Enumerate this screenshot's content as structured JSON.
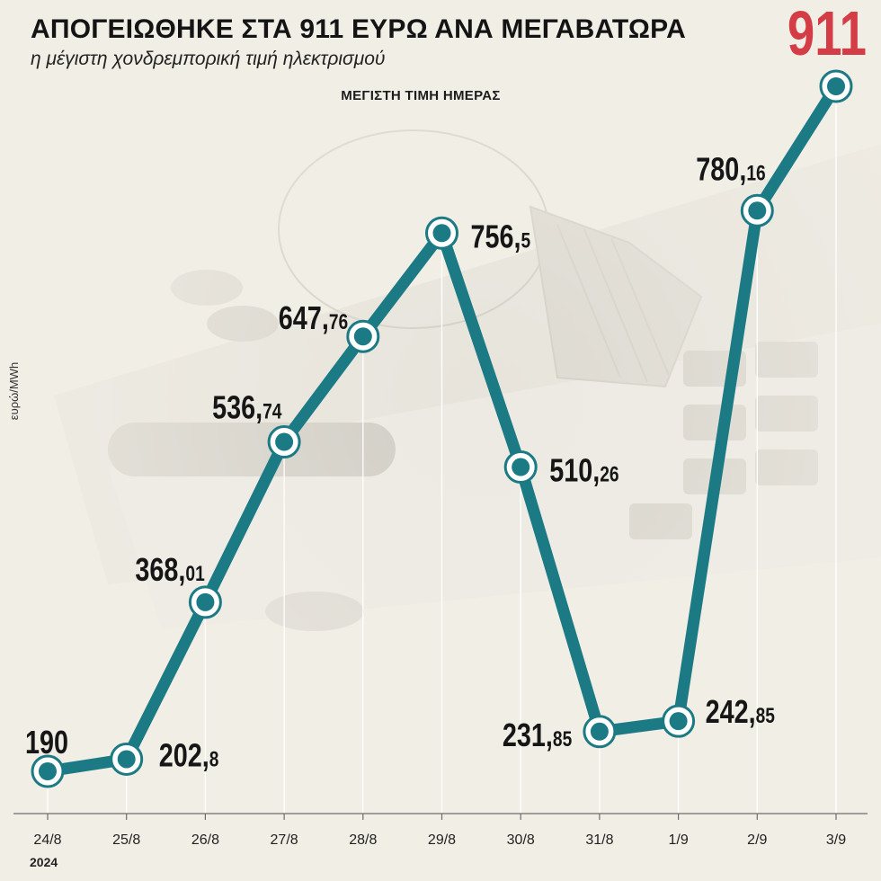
{
  "header": {
    "title": "ΑΠΟΓΕΙΩΘΗΚΕ ΣΤΑ 911 ΕΥΡΩ ΑΝΑ ΜΕΓΑΒΑΤΩΡΑ",
    "subtitle": "η μέγιστη χονδρεμπορική τιμή ηλεκτρισμού",
    "max_badge": "911"
  },
  "chart_data": {
    "type": "line",
    "title": "ΜΕΓΙΣΤΗ ΤΙΜΗ ΗΜΕΡΑΣ",
    "ylabel": "ευρώ/MWh",
    "xlabel_extra": "2024",
    "x": [
      "24/8",
      "25/8",
      "26/8",
      "27/8",
      "28/8",
      "29/8",
      "30/8",
      "31/8",
      "1/9",
      "2/9",
      "3/9"
    ],
    "values": [
      190,
      202.8,
      368.01,
      536.74,
      647.76,
      756.5,
      510.26,
      231.85,
      242.85,
      780.16,
      911
    ],
    "labels": [
      {
        "int": "190",
        "dec": ""
      },
      {
        "int": "202,",
        "dec": "8"
      },
      {
        "int": "368,",
        "dec": "01"
      },
      {
        "int": "536,",
        "dec": "74"
      },
      {
        "int": "647,",
        "dec": "76"
      },
      {
        "int": "756,",
        "dec": "5"
      },
      {
        "int": "510,",
        "dec": "26"
      },
      {
        "int": "231,",
        "dec": "85"
      },
      {
        "int": "242,",
        "dec": "85"
      },
      {
        "int": "780,",
        "dec": "16"
      },
      {
        "int": "",
        "dec": ""
      }
    ],
    "ylim": [
      190,
      911
    ],
    "line_color": "#1b7a84",
    "highlight_color": "#d43d45",
    "grid": false
  }
}
